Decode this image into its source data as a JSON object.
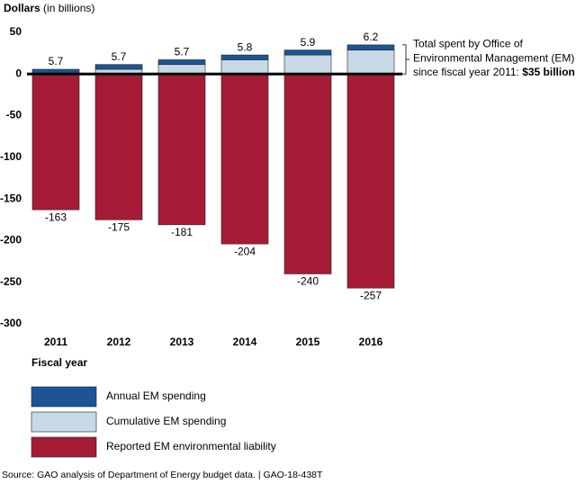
{
  "chart_data": {
    "type": "bar",
    "y_label": "Dollars",
    "y_label_unit": "(in billions)",
    "x_label": "Fiscal year",
    "categories": [
      "2011",
      "2012",
      "2013",
      "2014",
      "2015",
      "2016"
    ],
    "series": [
      {
        "name": "Annual EM spending",
        "color": "#1c5596",
        "values": [
          5.7,
          5.7,
          5.7,
          5.8,
          5.9,
          6.2
        ],
        "labels": true
      },
      {
        "name": "Cumulative EM spending",
        "color": "#c8d8e6",
        "values": [
          0,
          5.7,
          11.4,
          17.1,
          22.9,
          28.8
        ],
        "labels": false
      },
      {
        "name": "Reported EM environmental liability",
        "color": "#a51b36",
        "values": [
          -163,
          -175,
          -181,
          -204,
          -240,
          -257
        ],
        "labels": true
      }
    ],
    "ylim": [
      -300,
      50
    ],
    "yticks": [
      50,
      0,
      -50,
      -100,
      -150,
      -200,
      -250,
      -300
    ],
    "annotation": {
      "lines": [
        "Total spent by Office of",
        "Environmental Management (EM)",
        "since fiscal year 2011:"
      ],
      "highlight": "$35 billion"
    },
    "source": "Source: GAO analysis of Department of Energy budget data.  |  GAO-18-438T"
  }
}
